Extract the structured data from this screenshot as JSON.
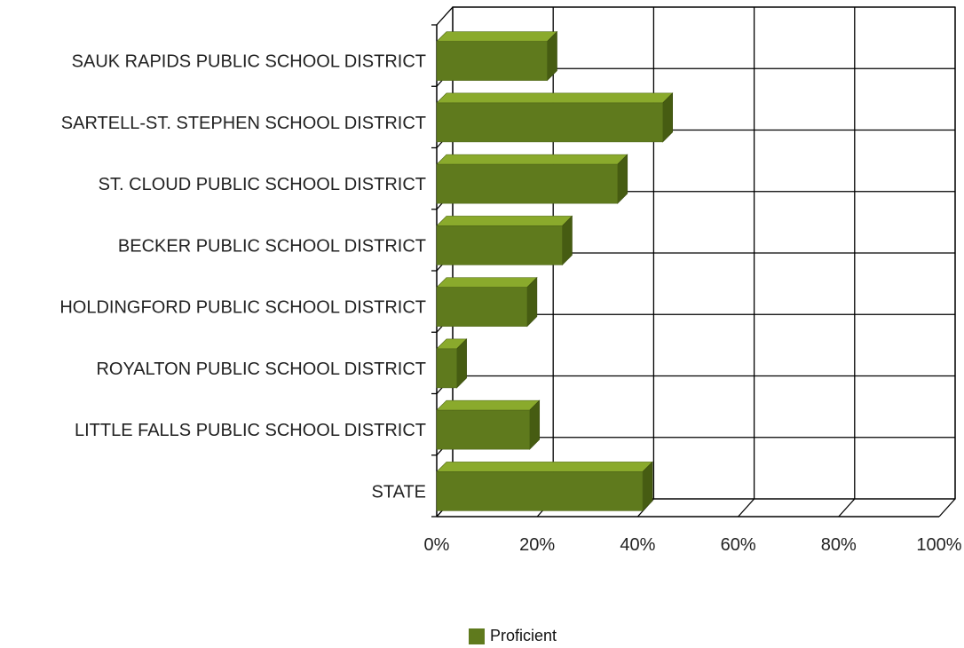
{
  "chart_data": {
    "type": "bar",
    "orientation": "horizontal",
    "style": "3d",
    "categories": [
      "SAUK RAPIDS PUBLIC SCHOOL DISTRICT",
      "SARTELL-ST. STEPHEN SCHOOL DISTRICT",
      "ST. CLOUD PUBLIC SCHOOL DISTRICT",
      "BECKER PUBLIC SCHOOL DISTRICT",
      "HOLDINGFORD PUBLIC SCHOOL DISTRICT",
      "ROYALTON PUBLIC SCHOOL DISTRICT",
      "LITTLE FALLS PUBLIC SCHOOL DISTRICT",
      "STATE"
    ],
    "series": [
      {
        "name": "Proficient",
        "values": [
          22,
          45,
          36,
          25,
          18,
          4,
          18.5,
          41
        ],
        "color": "#5f7a1d"
      }
    ],
    "xlim": [
      0,
      100
    ],
    "x_ticks": [
      "0%",
      "20%",
      "40%",
      "60%",
      "80%",
      "100%"
    ],
    "grid": true,
    "legend_position": "bottom-center",
    "title": "",
    "xlabel": "",
    "ylabel": ""
  },
  "legend": {
    "label": "Proficient",
    "color": "#5f7a1d"
  }
}
